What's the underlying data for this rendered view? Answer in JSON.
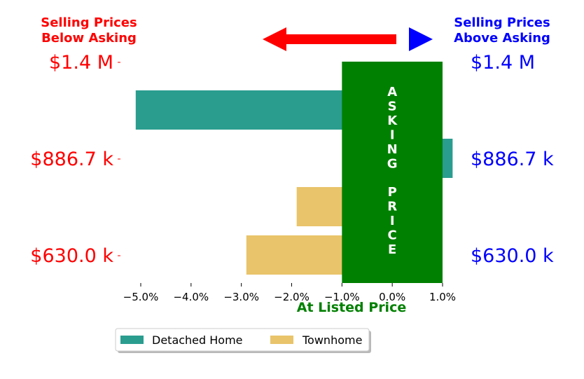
{
  "header": {
    "left_title_line1": "Selling Prices",
    "left_title_line2": "Below Asking",
    "right_title_line1": "Selling Prices",
    "right_title_line2": "Above Asking"
  },
  "asking_price_band": {
    "letters_top": [
      "A",
      "S",
      "K",
      "I",
      "N",
      "G"
    ],
    "letters_bottom": [
      "P",
      "R",
      "I",
      "C",
      "E"
    ],
    "range": [
      -1.0,
      1.0
    ],
    "color": "#008000"
  },
  "colors": {
    "below": "#ff0000",
    "above": "#0000ff",
    "band": "#008000",
    "detached": "#2a9d8f",
    "townhome": "#e9c46a"
  },
  "chart_data": {
    "type": "bar",
    "orientation": "horizontal",
    "xlabel": "At Listed Price",
    "xlim": [
      -5.4,
      1.0
    ],
    "xticks": [
      -5.0,
      -4.0,
      -3.0,
      -2.0,
      -1.0,
      0.0,
      1.0
    ],
    "xtick_labels": [
      "−5.0%",
      "−4.0%",
      "−3.0%",
      "−2.0%",
      "−1.0%",
      "0.0%",
      "1.0%"
    ],
    "y_ticks_left": [
      "$1.4 M",
      "$886.7 k",
      "$630.0 k"
    ],
    "y_ticks_right": [
      "$1.4 M",
      "$886.7 k",
      "$630.0 k"
    ],
    "bars": [
      {
        "series": "Detached Home",
        "value": -5.1,
        "row": 0
      },
      {
        "series": "Detached Home",
        "value": 1.2,
        "row": 1
      },
      {
        "series": "Townhome",
        "value": -1.9,
        "row": 2
      },
      {
        "series": "Townhome",
        "value": -2.9,
        "row": 3
      }
    ],
    "legend": {
      "placement": "bottom",
      "entries": [
        "Detached Home",
        "Townhome"
      ]
    }
  }
}
